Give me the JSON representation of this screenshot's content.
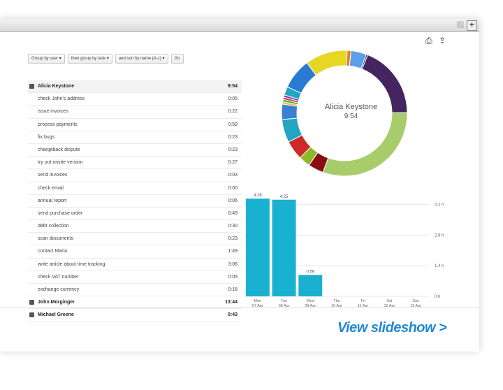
{
  "toolbar": {
    "print_icon": "print-icon",
    "export_icon": "export-icon",
    "plus_label": "+"
  },
  "filters": {
    "group1": "Group by user",
    "group2": "then group by task",
    "sort": "and sort by name (A-z)",
    "go": "Go"
  },
  "groups": [
    {
      "name": "Alicia Keystone",
      "total": "9:54",
      "expanded": true,
      "tasks": [
        {
          "name": "check John's address",
          "time": "0:05"
        },
        {
          "name": "issue invoices",
          "time": "0:22"
        },
        {
          "name": "process payments",
          "time": "0:59"
        },
        {
          "name": "fix bugs",
          "time": "0:23"
        },
        {
          "name": "chargeback dispute",
          "time": "0:23"
        },
        {
          "name": "try out onsite version",
          "time": "0:27"
        },
        {
          "name": "send invoices",
          "time": "0:03"
        },
        {
          "name": "check email",
          "time": "0:00"
        },
        {
          "name": "annual report",
          "time": "0:06"
        },
        {
          "name": "send purchase order",
          "time": "0:49"
        },
        {
          "name": "debt collection",
          "time": "0:30"
        },
        {
          "name": "scan documents",
          "time": "0:23"
        },
        {
          "name": "contact Maria",
          "time": "1:49"
        },
        {
          "name": "write article about time tracking",
          "time": "3:06"
        },
        {
          "name": "check VAT number",
          "time": "0:05"
        },
        {
          "name": "exchange currency",
          "time": "0:16"
        }
      ]
    },
    {
      "name": "John Morginger",
      "total": "13:44",
      "expanded": false,
      "tasks": []
    },
    {
      "name": "Michael Greene",
      "total": "0:43",
      "expanded": false,
      "tasks": []
    }
  ],
  "donut": {
    "center_name": "Alicia Keystone",
    "center_time": "9:54",
    "segments": [
      {
        "value": 19,
        "color": "#45255f"
      },
      {
        "value": 31,
        "color": "#a8cc6a"
      },
      {
        "value": 4,
        "color": "#8b0d14"
      },
      {
        "value": 3,
        "color": "#8fb82a"
      },
      {
        "value": 5,
        "color": "#cc2a2a"
      },
      {
        "value": 6,
        "color": "#22a4c4"
      },
      {
        "value": 4,
        "color": "#3a7fd0"
      },
      {
        "value": 0.6,
        "color": "#f0c030"
      },
      {
        "value": 0.6,
        "color": "#3aa84a"
      },
      {
        "value": 0.6,
        "color": "#cc3333"
      },
      {
        "value": 0.6,
        "color": "#7a3da0"
      },
      {
        "value": 2.2,
        "color": "#22a4c4"
      },
      {
        "value": 8,
        "color": "#2a7ad4"
      },
      {
        "value": 11,
        "color": "#e6d626"
      },
      {
        "value": 1,
        "color": "#f07a20"
      },
      {
        "value": 4,
        "color": "#5aa0e8"
      },
      {
        "value": 0.4,
        "color": "#333366"
      }
    ]
  },
  "chart_data": {
    "type": "bar",
    "categories": [
      "Mon\n07 Apr",
      "Tue\n08 Apr",
      "Wed\n09 Apr",
      "Thu\n10 Apr",
      "Fri\n11 Apr",
      "Sat\n12 Apr",
      "Sun\n13 Apr"
    ],
    "values": [
      4.47,
      4.42,
      0.98,
      0,
      0,
      0,
      0
    ],
    "bar_labels": [
      "4:28",
      "4:25",
      "0:59",
      "",
      "",
      "",
      ""
    ],
    "yticks": [
      {
        "value": 0,
        "label": "0 h"
      },
      {
        "value": 1.4,
        "label": "1.4 h"
      },
      {
        "value": 2.8,
        "label": "2.8 h"
      },
      {
        "value": 4.2,
        "label": "4.2 h"
      }
    ],
    "ylim": [
      0,
      4.7
    ],
    "bar_color": "#1ab0cf",
    "grid": true
  },
  "footer": {
    "link": "View slideshow >",
    "color": "#1f87d4"
  }
}
